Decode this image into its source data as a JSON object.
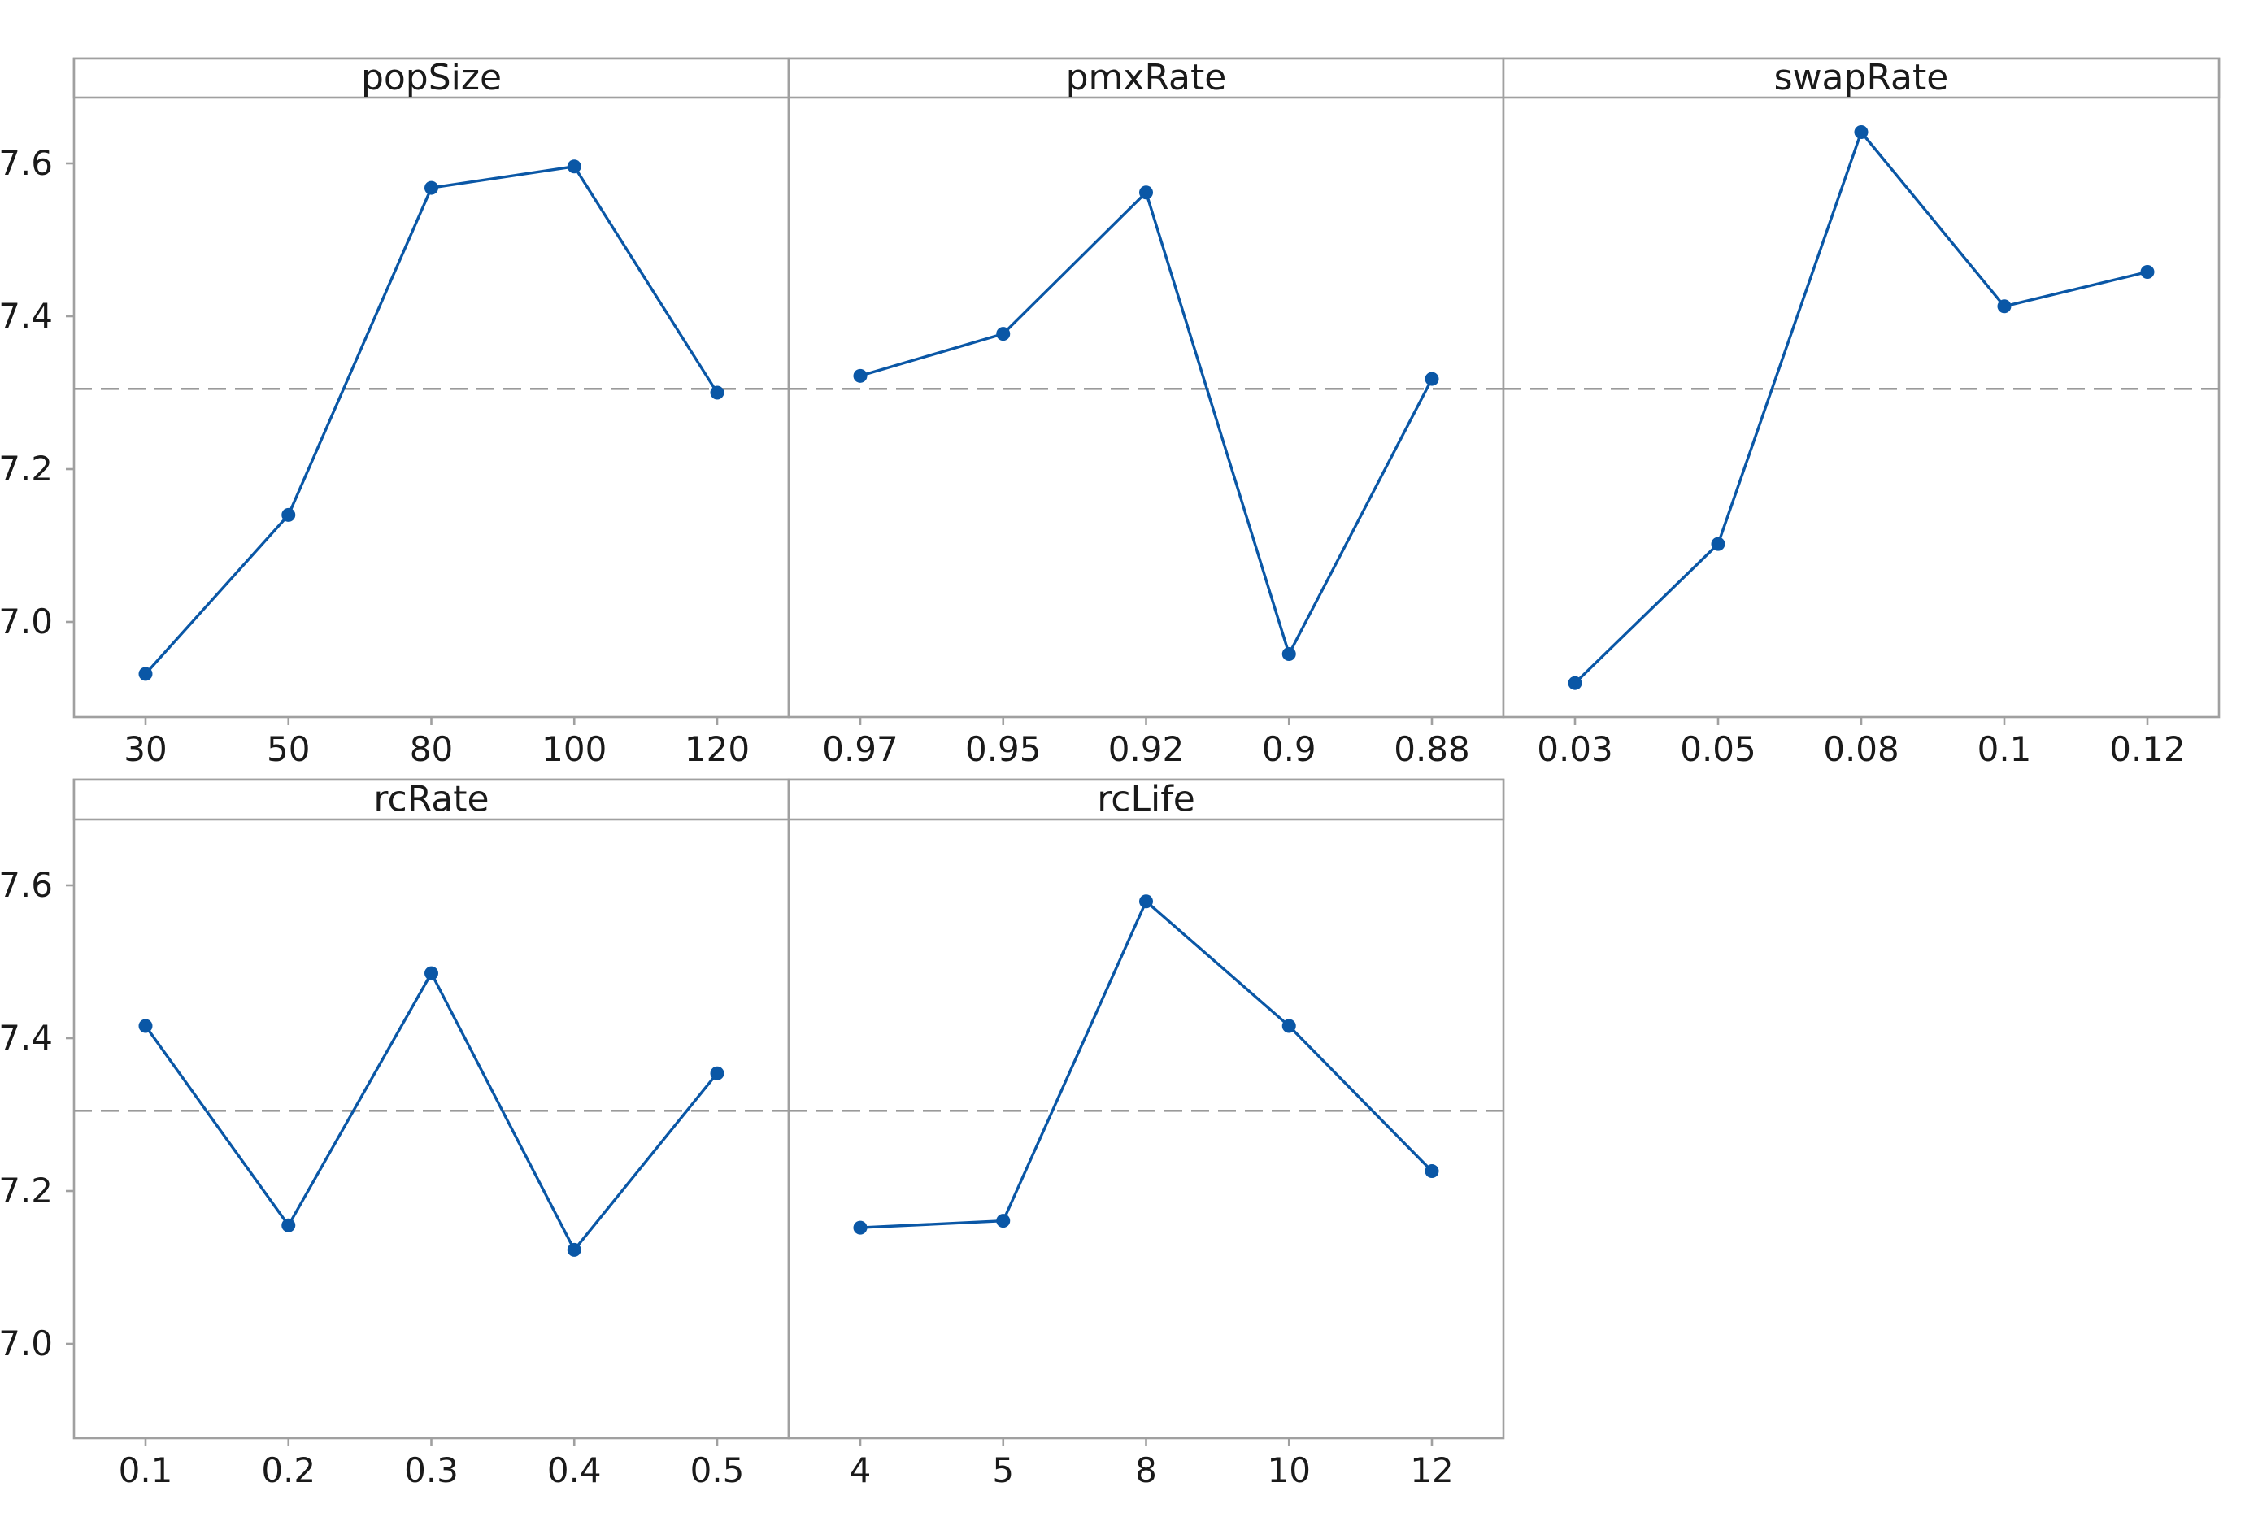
{
  "chart_data": {
    "type": "line",
    "layout": "faceted panels, 2 rows x 3 columns",
    "series_color": "#0a57a6",
    "reference_line": {
      "y": 7.305,
      "style": "dashed",
      "color": "#9a9a9a"
    },
    "ylim": [
      6.88,
      7.68
    ],
    "yticks": [
      7.0,
      7.2,
      7.4,
      7.6
    ],
    "ytick_labels": [
      "7.0",
      "7.2",
      "7.4",
      "7.6"
    ],
    "grid": false,
    "panels": [
      {
        "title": "popSize",
        "categories": [
          "30",
          "50",
          "80",
          "100",
          "120"
        ],
        "values": [
          6.932,
          7.14,
          7.568,
          7.596,
          7.3
        ]
      },
      {
        "title": "pmxRate",
        "categories": [
          "0.97",
          "0.95",
          "0.92",
          "0.9",
          "0.88"
        ],
        "values": [
          7.322,
          7.377,
          7.562,
          6.958,
          7.318
        ]
      },
      {
        "title": "swapRate",
        "categories": [
          "0.03",
          "0.05",
          "0.08",
          "0.1",
          "0.12"
        ],
        "values": [
          6.92,
          7.102,
          7.641,
          7.413,
          7.458
        ]
      },
      {
        "title": "rcRate",
        "categories": [
          "0.1",
          "0.2",
          "0.3",
          "0.4",
          "0.5"
        ],
        "values": [
          7.416,
          7.155,
          7.485,
          7.123,
          7.354
        ]
      },
      {
        "title": "rcLife",
        "categories": [
          "4",
          "5",
          "8",
          "10",
          "12"
        ],
        "values": [
          7.152,
          7.161,
          7.579,
          7.416,
          7.226
        ]
      }
    ]
  }
}
